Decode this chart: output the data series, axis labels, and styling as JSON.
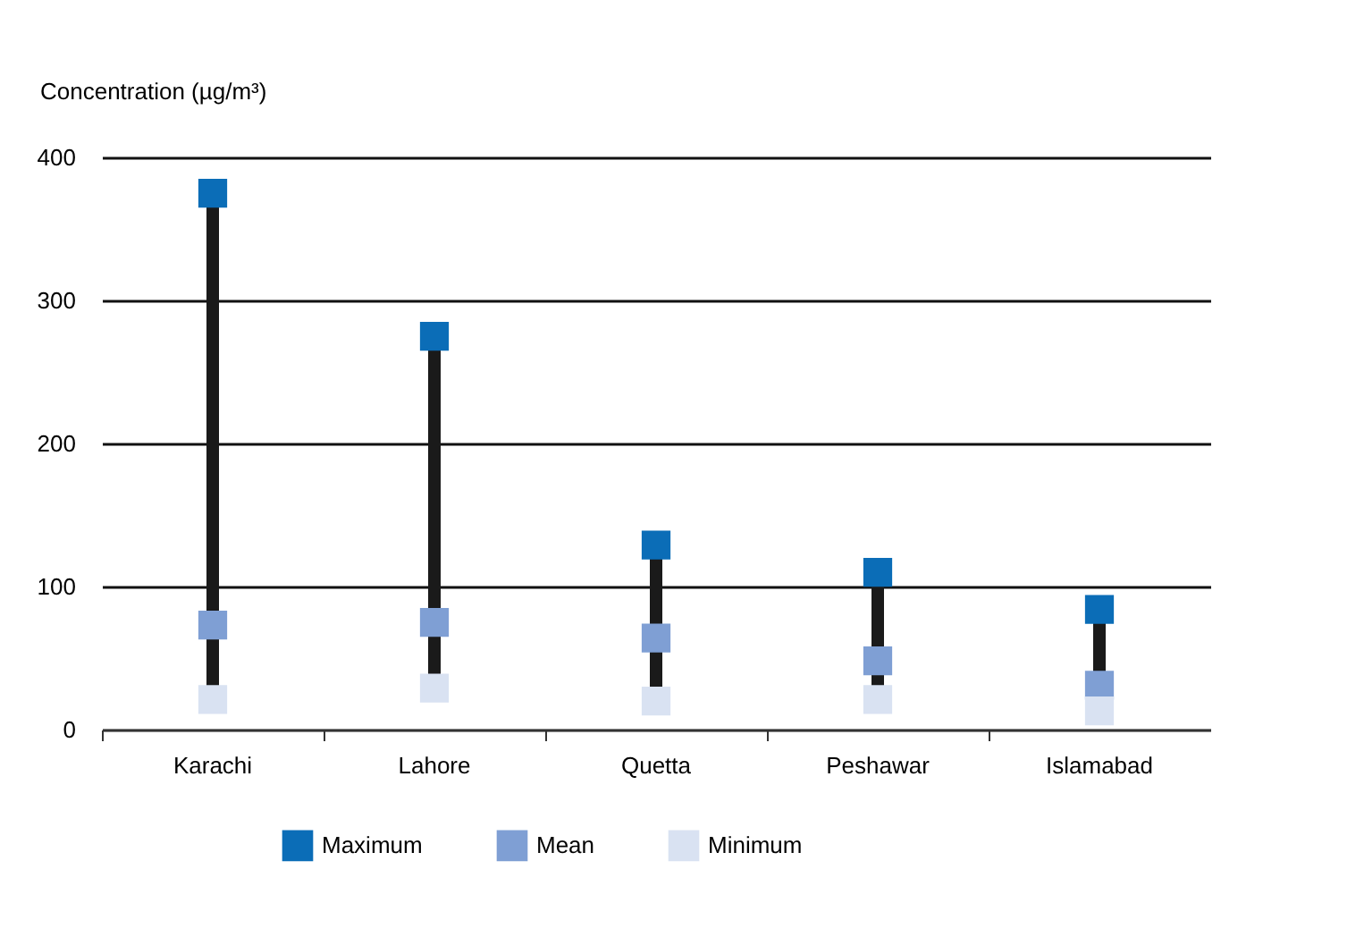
{
  "chart_data": {
    "type": "scatter",
    "ylabel": "Concentration (µg/m³)",
    "categories": [
      "Karachi",
      "Lahore",
      "Quetta",
      "Peshawar",
      "Islamabad"
    ],
    "series": [
      {
        "name": "Maximum",
        "color": "#0b6db7",
        "values": [
          375,
          275,
          129,
          110,
          84
        ]
      },
      {
        "name": "Mean",
        "color": "#7f9fd4",
        "values": [
          73,
          75,
          64,
          48,
          31
        ]
      },
      {
        "name": "Minimum",
        "color": "#d9e2f2",
        "values": [
          21,
          29,
          20,
          21,
          13
        ]
      }
    ],
    "ylim": [
      0,
      400
    ],
    "yticks": [
      0,
      100,
      200,
      300,
      400
    ],
    "grid": "y",
    "legend": "bottom",
    "marker": "square"
  }
}
